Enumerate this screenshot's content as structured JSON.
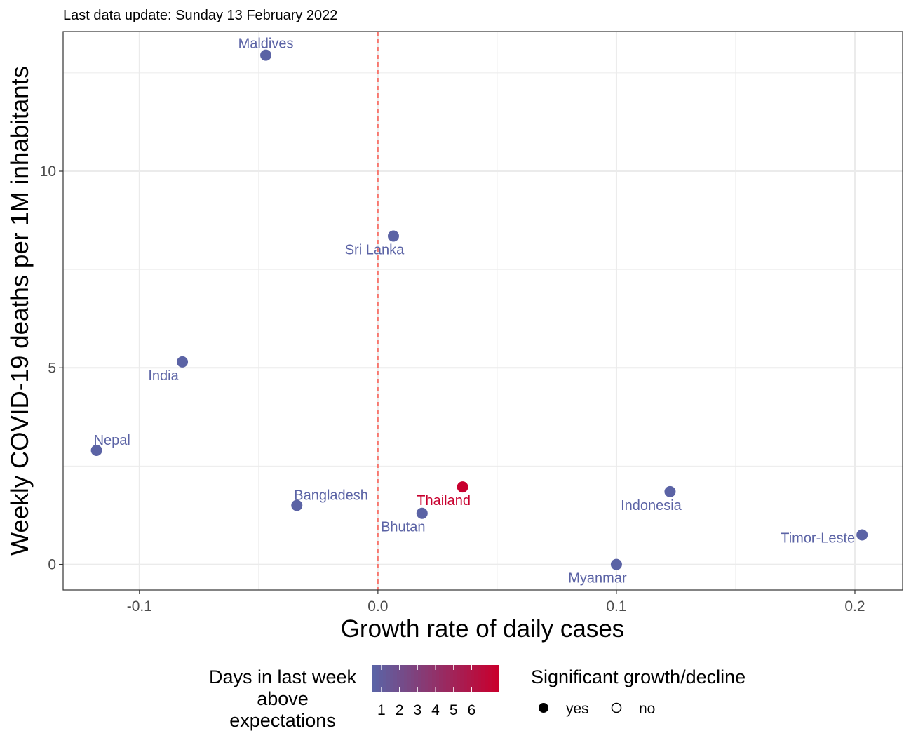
{
  "chart_data": {
    "type": "scatter",
    "subtitle": "Last data update: Sunday 13 February 2022",
    "xlabel": "Growth rate of daily cases",
    "ylabel": "Weekly COVID-19 deaths per 1M inhabitants",
    "xlim": [
      -0.132,
      0.22
    ],
    "ylim": [
      -0.65,
      13.55
    ],
    "x_ticks": [
      -0.1,
      0.0,
      0.1,
      0.2
    ],
    "x_tick_labels": [
      "-0.1",
      "0.0",
      "0.1",
      "0.2"
    ],
    "x_minor_ticks": [
      -0.05,
      0.05,
      0.15
    ],
    "y_ticks": [
      0,
      5,
      10
    ],
    "y_tick_labels": [
      "0",
      "5",
      "10"
    ],
    "y_minor_ticks": [
      2.5,
      7.5,
      12.5
    ],
    "reference_line": {
      "x": 0,
      "style": "dashed",
      "color": "#f8766d"
    },
    "grid": true,
    "points": [
      {
        "label": "Maldives",
        "x": -0.047,
        "y": 12.95,
        "days_above": 1,
        "significant": "yes",
        "label_pos": "above"
      },
      {
        "label": "Sri Lanka",
        "x": 0.0065,
        "y": 8.35,
        "days_above": 1,
        "significant": "yes",
        "label_pos": "below-left"
      },
      {
        "label": "India",
        "x": -0.082,
        "y": 5.15,
        "days_above": 1,
        "significant": "yes",
        "label_pos": "below-left"
      },
      {
        "label": "Nepal",
        "x": -0.118,
        "y": 2.9,
        "days_above": 1,
        "significant": "yes",
        "label_pos": "above-right"
      },
      {
        "label": "Bangladesh",
        "x": -0.034,
        "y": 1.5,
        "days_above": 1,
        "significant": "yes",
        "label_pos": "above-right"
      },
      {
        "label": "Thailand",
        "x": 0.0355,
        "y": 1.97,
        "days_above": 6,
        "significant": "yes",
        "label_pos": "below-left"
      },
      {
        "label": "Bhutan",
        "x": 0.0185,
        "y": 1.3,
        "days_above": 1,
        "significant": "yes",
        "label_pos": "below-left"
      },
      {
        "label": "Indonesia",
        "x": 0.1225,
        "y": 1.85,
        "days_above": 1,
        "significant": "yes",
        "label_pos": "below-left"
      },
      {
        "label": "Timor-Leste",
        "x": 0.203,
        "y": 0.75,
        "days_above": 1,
        "significant": "yes",
        "label_pos": "left"
      },
      {
        "label": "Myanmar",
        "x": 0.1,
        "y": 0.0,
        "days_above": 1,
        "significant": "yes",
        "label_pos": "below-left"
      }
    ],
    "color_legend": {
      "title_lines": [
        "Days in last week",
        "above",
        "expectations"
      ],
      "labels": [
        "1",
        "2",
        "3",
        "4",
        "5",
        "6"
      ],
      "low_color": "#5b63a5",
      "high_color": "#c8002e"
    },
    "shape_legend": {
      "title": "Significant growth/decline",
      "items": [
        {
          "label": "yes",
          "filled": true
        },
        {
          "label": "no",
          "filled": false
        }
      ]
    },
    "colors": {
      "point_low": "#5e65a6",
      "point_high": "#c0213f",
      "grid": "#ebebeb",
      "panel_border": "#333333",
      "tick_label": "#4d4d4d"
    }
  }
}
